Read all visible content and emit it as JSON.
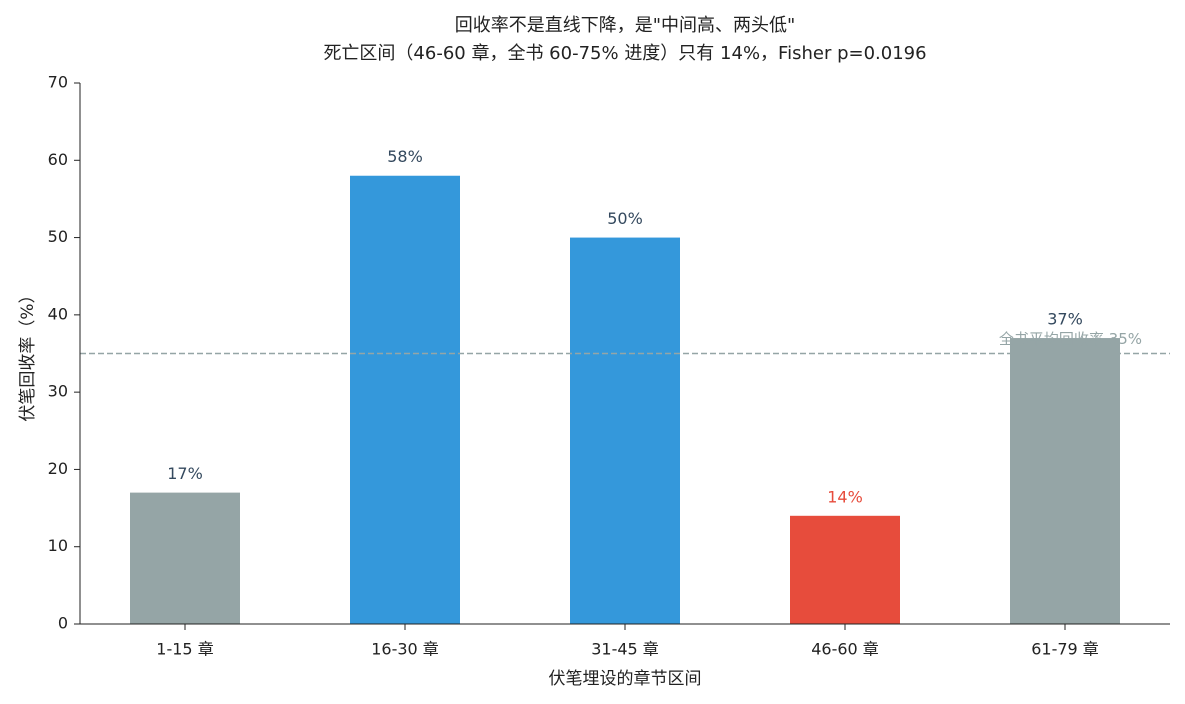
{
  "chart_data": {
    "type": "bar",
    "title": [
      "回收率不是直线下降，是\"中间高、两头低\"",
      "死亡区间（46-60 章，全书 60-75% 进度）只有 14%，Fisher p=0.0196"
    ],
    "xlabel": "伏笔埋设的章节区间",
    "ylabel": "伏笔回收率（%）",
    "categories": [
      "1-15 章",
      "16-30 章",
      "31-45 章",
      "46-60 章",
      "61-79 章"
    ],
    "values": [
      17,
      58,
      50,
      14,
      37
    ],
    "value_labels": [
      "17%",
      "58%",
      "50%",
      "14%",
      "37%"
    ],
    "colors": [
      "#95a5a6",
      "#3498db",
      "#3498db",
      "#e74c3c",
      "#95a5a6"
    ],
    "value_label_colors": [
      "#34495e",
      "#34495e",
      "#34495e",
      "#e74c3c",
      "#34495e"
    ],
    "ylim": [
      0,
      70
    ],
    "yticks": [
      0,
      10,
      20,
      30,
      40,
      50,
      60,
      70
    ],
    "reference_line": {
      "value": 35,
      "label": "全书平均回收率 35%",
      "color": "#95a5a6"
    }
  }
}
